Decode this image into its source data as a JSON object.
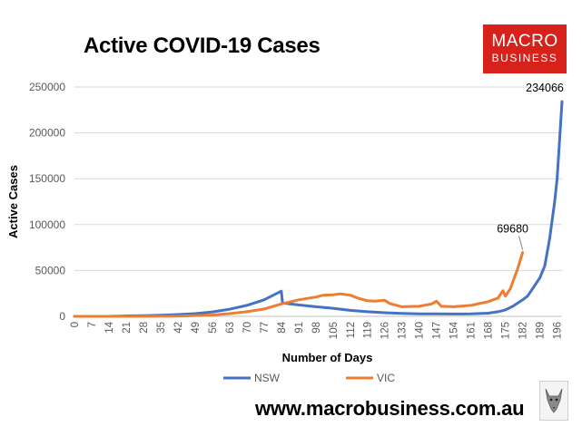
{
  "chart_data": {
    "type": "line",
    "title": "Active COVID-19 Cases",
    "xlabel": "Number of Days",
    "ylabel": "Active Cases",
    "xlim": [
      0,
      198
    ],
    "ylim": [
      0,
      250000
    ],
    "x_ticks": [
      0,
      7,
      14,
      21,
      28,
      35,
      42,
      49,
      56,
      63,
      70,
      77,
      84,
      91,
      98,
      105,
      112,
      119,
      126,
      133,
      140,
      147,
      154,
      161,
      168,
      175,
      182,
      189,
      196
    ],
    "y_ticks": [
      0,
      50000,
      100000,
      150000,
      200000,
      250000
    ],
    "y_tick_labels": [
      "0",
      "50000",
      "100000",
      "150000",
      "200000",
      "250000"
    ],
    "grid": "horizontal",
    "legend": "bottom",
    "series": [
      {
        "name": "NSW",
        "color": "#4472c4",
        "points": [
          [
            0,
            0
          ],
          [
            14,
            0
          ],
          [
            21,
            500
          ],
          [
            28,
            800
          ],
          [
            35,
            1300
          ],
          [
            42,
            2000
          ],
          [
            49,
            3000
          ],
          [
            56,
            4800
          ],
          [
            63,
            7800
          ],
          [
            70,
            12000
          ],
          [
            77,
            18000
          ],
          [
            80,
            22000
          ],
          [
            84,
            27500
          ],
          [
            84.5,
            14500
          ],
          [
            91,
            12500
          ],
          [
            98,
            10500
          ],
          [
            105,
            8800
          ],
          [
            112,
            6500
          ],
          [
            119,
            5000
          ],
          [
            126,
            4000
          ],
          [
            133,
            3200
          ],
          [
            140,
            2800
          ],
          [
            147,
            2800
          ],
          [
            154,
            2600
          ],
          [
            161,
            2700
          ],
          [
            168,
            3500
          ],
          [
            172,
            5000
          ],
          [
            175,
            7000
          ],
          [
            178,
            11000
          ],
          [
            182,
            18000
          ],
          [
            184,
            22000
          ],
          [
            186,
            30000
          ],
          [
            189,
            42000
          ],
          [
            191,
            55000
          ],
          [
            193,
            85000
          ],
          [
            195,
            125000
          ],
          [
            196,
            150000
          ],
          [
            198,
            234066
          ]
        ]
      },
      {
        "name": "VIC",
        "color": "#ed7d31",
        "points": [
          [
            0,
            0
          ],
          [
            28,
            0
          ],
          [
            42,
            200
          ],
          [
            56,
            1500
          ],
          [
            63,
            3000
          ],
          [
            70,
            5000
          ],
          [
            77,
            8000
          ],
          [
            84,
            13500
          ],
          [
            88,
            16000
          ],
          [
            91,
            18000
          ],
          [
            98,
            21000
          ],
          [
            101,
            23000
          ],
          [
            105,
            23500
          ],
          [
            108,
            24500
          ],
          [
            112,
            23000
          ],
          [
            115,
            20000
          ],
          [
            119,
            17000
          ],
          [
            122,
            16500
          ],
          [
            126,
            17500
          ],
          [
            128,
            14000
          ],
          [
            133,
            10500
          ],
          [
            140,
            11000
          ],
          [
            145,
            13500
          ],
          [
            147,
            16500
          ],
          [
            149,
            11000
          ],
          [
            154,
            10500
          ],
          [
            161,
            12000
          ],
          [
            168,
            16000
          ],
          [
            172,
            20000
          ],
          [
            174,
            28000
          ],
          [
            175,
            22000
          ],
          [
            177,
            30000
          ],
          [
            179,
            45000
          ],
          [
            180,
            52000
          ],
          [
            182,
            69680
          ]
        ]
      }
    ],
    "annotations": [
      {
        "text": "234066",
        "x": 198,
        "y": 234066
      },
      {
        "text": "69680",
        "x": 182,
        "y": 69680
      }
    ]
  },
  "website": "www.macrobusiness.com.au",
  "logo": {
    "line1": "MACRO",
    "line2": "BUSINESS",
    "color": "#d7211b"
  }
}
